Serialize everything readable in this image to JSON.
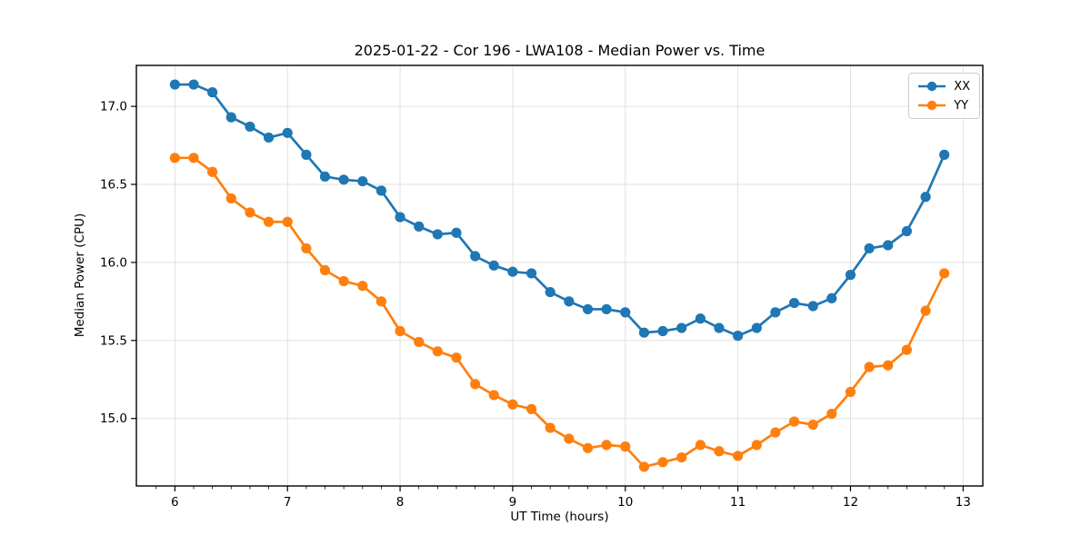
{
  "chart_data": {
    "type": "line",
    "title": "2025-01-22 - Cor 196 - LWA108 - Median Power vs. Time",
    "xlabel": "UT Time (hours)",
    "ylabel": "Median Power (CPU)",
    "xlim": [
      5.658,
      13.175
    ],
    "ylim": [
      14.5675,
      17.2625
    ],
    "xticks": [
      6,
      7,
      8,
      9,
      10,
      11,
      12,
      13
    ],
    "yticks": [
      15.0,
      15.5,
      16.0,
      16.5,
      17.0
    ],
    "minor_tick_step_hours": 0.1667,
    "grid": true,
    "legend_position": "upper right",
    "x": [
      6.0,
      6.167,
      6.333,
      6.5,
      6.667,
      6.833,
      7.0,
      7.167,
      7.333,
      7.5,
      7.667,
      7.833,
      8.0,
      8.167,
      8.333,
      8.5,
      8.667,
      8.833,
      9.0,
      9.167,
      9.333,
      9.5,
      9.667,
      9.833,
      10.0,
      10.167,
      10.333,
      10.5,
      10.667,
      10.833,
      11.0,
      11.167,
      11.333,
      11.5,
      11.667,
      11.833,
      12.0,
      12.167,
      12.333,
      12.5,
      12.667,
      12.833
    ],
    "series": [
      {
        "name": "XX",
        "color": "#1f77b4",
        "marker": "circle",
        "values": [
          17.14,
          17.14,
          17.09,
          16.93,
          16.87,
          16.8,
          16.83,
          16.69,
          16.55,
          16.53,
          16.52,
          16.46,
          16.29,
          16.23,
          16.18,
          16.19,
          16.04,
          15.98,
          15.94,
          15.93,
          15.81,
          15.75,
          15.7,
          15.7,
          15.68,
          15.55,
          15.56,
          15.58,
          15.64,
          15.58,
          15.53,
          15.58,
          15.68,
          15.74,
          15.72,
          15.77,
          15.92,
          16.09,
          16.11,
          16.2,
          16.42,
          16.69
        ]
      },
      {
        "name": "YY",
        "color": "#ff7f0e",
        "marker": "circle",
        "values": [
          16.67,
          16.67,
          16.58,
          16.41,
          16.32,
          16.26,
          16.26,
          16.09,
          15.95,
          15.88,
          15.85,
          15.75,
          15.56,
          15.49,
          15.43,
          15.39,
          15.22,
          15.15,
          15.09,
          15.06,
          14.94,
          14.87,
          14.81,
          14.83,
          14.82,
          14.69,
          14.72,
          14.75,
          14.83,
          14.79,
          14.76,
          14.83,
          14.91,
          14.98,
          14.96,
          15.03,
          15.17,
          15.33,
          15.34,
          15.44,
          15.69,
          15.93
        ]
      }
    ],
    "colors": {
      "grid": "#e0e0e0",
      "spine": "#000000",
      "tick_label": "#000000",
      "background": "#ffffff"
    }
  }
}
